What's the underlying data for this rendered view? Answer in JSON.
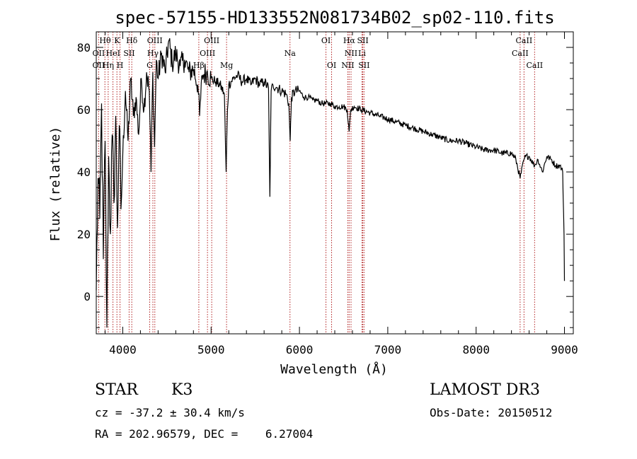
{
  "chart_data": {
    "type": "line",
    "title": "spec-57155-HD133552N081734B02_sp02-110.fits",
    "xlabel": "Wavelength (Å)",
    "ylabel": "Flux (relative)",
    "xlim": [
      3700,
      9100
    ],
    "ylim": [
      -12,
      85
    ],
    "xticks": [
      4000,
      5000,
      6000,
      7000,
      8000,
      9000
    ],
    "yticks": [
      0,
      20,
      40,
      60,
      80
    ],
    "xtick_labels": [
      "4000",
      "5000",
      "6000",
      "7000",
      "8000",
      "9000"
    ],
    "ytick_labels": [
      "0",
      "20",
      "40",
      "60",
      "80"
    ],
    "series": [
      {
        "name": "spectrum",
        "x": [
          3700,
          3720,
          3740,
          3760,
          3780,
          3800,
          3820,
          3840,
          3860,
          3880,
          3900,
          3920,
          3940,
          3960,
          3980,
          4000,
          4030,
          4060,
          4090,
          4120,
          4150,
          4180,
          4210,
          4240,
          4270,
          4300,
          4320,
          4340,
          4360,
          4380,
          4400,
          4440,
          4480,
          4520,
          4560,
          4600,
          4650,
          4700,
          4750,
          4800,
          4850,
          4870,
          4900,
          4950,
          5000,
          5050,
          5100,
          5150,
          5170,
          5185,
          5200,
          5250,
          5300,
          5350,
          5400,
          5450,
          5500,
          5550,
          5600,
          5650,
          5665,
          5680,
          5700,
          5750,
          5800,
          5850,
          5880,
          5895,
          5910,
          5950,
          6000,
          6050,
          6100,
          6150,
          6200,
          6250,
          6300,
          6350,
          6400,
          6450,
          6500,
          6540,
          6563,
          6580,
          6620,
          6700,
          6800,
          6900,
          7000,
          7100,
          7200,
          7300,
          7400,
          7500,
          7600,
          7700,
          7800,
          7900,
          8000,
          8100,
          8200,
          8300,
          8400,
          8450,
          8498,
          8542,
          8560,
          8600,
          8662,
          8700,
          8750,
          8800,
          8850,
          8900,
          8950,
          8980,
          8995,
          9000
        ],
        "y": [
          2,
          38,
          25,
          62,
          12,
          50,
          -10,
          45,
          20,
          52,
          30,
          58,
          22,
          55,
          28,
          45,
          66,
          50,
          70,
          58,
          64,
          52,
          70,
          60,
          72,
          66,
          40,
          72,
          48,
          76,
          70,
          78,
          72,
          82,
          75,
          78,
          74,
          76,
          72,
          73,
          68,
          58,
          71,
          72,
          70,
          69,
          68,
          65,
          40,
          60,
          68,
          70,
          71,
          69,
          70,
          68,
          70,
          68,
          69,
          67,
          32,
          66,
          68,
          67,
          66,
          65,
          62,
          50,
          64,
          66,
          66,
          64,
          64,
          63,
          63,
          62,
          62,
          62,
          61,
          61,
          61,
          60,
          53,
          60,
          61,
          60,
          59,
          58,
          57,
          56,
          55,
          54,
          53,
          52,
          51,
          50,
          50,
          49,
          48,
          47,
          47,
          46,
          46,
          44,
          38,
          44,
          45,
          45,
          42,
          44,
          40,
          45,
          44,
          42,
          42,
          40,
          20,
          5
        ]
      }
    ],
    "line_markers": [
      {
        "name": "OII",
        "wavelength": 3727
      },
      {
        "name": "Hθ",
        "wavelength": 3798
      },
      {
        "name": "Hη",
        "wavelength": 3835
      },
      {
        "name": "HeI",
        "wavelength": 3889
      },
      {
        "name": "K",
        "wavelength": 3934
      },
      {
        "name": "H",
        "wavelength": 3969
      },
      {
        "name": "Hδ",
        "wavelength": 4102
      },
      {
        "name": "SII",
        "wavelength": 4072
      },
      {
        "name": "OIII",
        "wavelength": 4363
      },
      {
        "name": "Hγ",
        "wavelength": 4341
      },
      {
        "name": "G",
        "wavelength": 4305
      },
      {
        "name": "Hβ",
        "wavelength": 4861
      },
      {
        "name": "OIII",
        "wavelength": 4959
      },
      {
        "name": "OIII",
        "wavelength": 5007
      },
      {
        "name": "Mg",
        "wavelength": 5175
      },
      {
        "name": "Na",
        "wavelength": 5893
      },
      {
        "name": "OI",
        "wavelength": 6300
      },
      {
        "name": "OI",
        "wavelength": 6364
      },
      {
        "name": "NII",
        "wavelength": 6548
      },
      {
        "name": "Hα",
        "wavelength": 6563
      },
      {
        "name": "NII",
        "wavelength": 6584
      },
      {
        "name": "Li",
        "wavelength": 6708
      },
      {
        "name": "SII",
        "wavelength": 6717
      },
      {
        "name": "SII",
        "wavelength": 6731
      },
      {
        "name": "CaII",
        "wavelength": 8498
      },
      {
        "name": "CaII",
        "wavelength": 8542
      },
      {
        "name": "CaII",
        "wavelength": 8662
      }
    ],
    "marker_labels": [
      {
        "text": "Hθ",
        "wavelength": 3800,
        "row": 0
      },
      {
        "text": "K",
        "wavelength": 3935,
        "row": 0
      },
      {
        "text": "Hδ",
        "wavelength": 4102,
        "row": 0
      },
      {
        "text": "OIII",
        "wavelength": 4363,
        "row": 0
      },
      {
        "text": "OIII",
        "wavelength": 5007,
        "row": 0
      },
      {
        "text": "OI",
        "wavelength": 6300,
        "row": 0
      },
      {
        "text": "Hα",
        "wavelength": 6563,
        "row": 0
      },
      {
        "text": "SII",
        "wavelength": 6717,
        "row": 0
      },
      {
        "text": "CaII",
        "wavelength": 8542,
        "row": 0
      },
      {
        "text": "OII",
        "wavelength": 3727,
        "row": 1
      },
      {
        "text": "HeI",
        "wavelength": 3890,
        "row": 1
      },
      {
        "text": "SII",
        "wavelength": 4072,
        "row": 1
      },
      {
        "text": "Hγ",
        "wavelength": 4341,
        "row": 1
      },
      {
        "text": "OIII",
        "wavelength": 4959,
        "row": 1
      },
      {
        "text": "Na",
        "wavelength": 5893,
        "row": 1
      },
      {
        "text": "NII",
        "wavelength": 6584,
        "row": 1
      },
      {
        "text": "Li",
        "wavelength": 6708,
        "row": 1
      },
      {
        "text": "CaII",
        "wavelength": 8498,
        "row": 1
      },
      {
        "text": "OII",
        "wavelength": 3727,
        "row": 2
      },
      {
        "text": "Hη",
        "wavelength": 3835,
        "row": 2
      },
      {
        "text": "H",
        "wavelength": 3969,
        "row": 2
      },
      {
        "text": "G",
        "wavelength": 4305,
        "row": 2
      },
      {
        "text": "Hβ",
        "wavelength": 4861,
        "row": 2
      },
      {
        "text": "Mg",
        "wavelength": 5175,
        "row": 2
      },
      {
        "text": "OI",
        "wavelength": 6364,
        "row": 2
      },
      {
        "text": "NII",
        "wavelength": 6548,
        "row": 2
      },
      {
        "text": "SII",
        "wavelength": 6731,
        "row": 2
      },
      {
        "text": "CaII",
        "wavelength": 8662,
        "row": 2
      }
    ],
    "grid": false,
    "marker_color": "#b22222"
  },
  "info": {
    "object_type": "STAR",
    "subclass": "K3",
    "survey": "LAMOST DR3",
    "cz": "cz = -37.2 ± 30.4 km/s",
    "obs_date": "Obs-Date: 20150512",
    "coords": "RA = 202.96579, DEC =    6.27004"
  }
}
